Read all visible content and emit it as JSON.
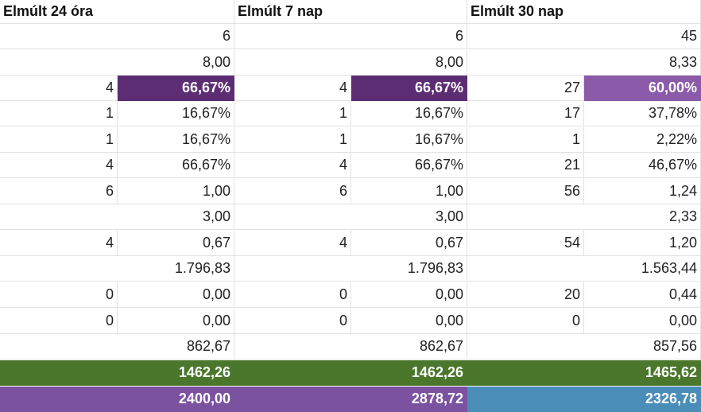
{
  "colors": {
    "dark_purple": "#5c2d73",
    "medium_purple": "#8b5aa8",
    "green": "#4a772b",
    "purple_total": "#7b52a0",
    "blue_total": "#4a8db8"
  },
  "headers": [
    "Elmúlt 24 óra",
    "Elmúlt 7 nap",
    "Elmúlt 30 nap"
  ],
  "rows": [
    {
      "type": "single",
      "values": [
        "6",
        "6",
        "45"
      ]
    },
    {
      "type": "single",
      "values": [
        "8,00",
        "8,00",
        "8,33"
      ]
    },
    {
      "type": "pair",
      "values": [
        [
          "4",
          "66,67%"
        ],
        [
          "4",
          "66,67%"
        ],
        [
          "27",
          "60,00%"
        ]
      ],
      "highlight": [
        "dark_purple",
        "dark_purple",
        "medium_purple"
      ]
    },
    {
      "type": "pair",
      "values": [
        [
          "1",
          "16,67%"
        ],
        [
          "1",
          "16,67%"
        ],
        [
          "17",
          "37,78%"
        ]
      ]
    },
    {
      "type": "pair",
      "values": [
        [
          "1",
          "16,67%"
        ],
        [
          "1",
          "16,67%"
        ],
        [
          "1",
          "2,22%"
        ]
      ]
    },
    {
      "type": "pair",
      "values": [
        [
          "4",
          "66,67%"
        ],
        [
          "4",
          "66,67%"
        ],
        [
          "21",
          "46,67%"
        ]
      ]
    },
    {
      "type": "pair",
      "values": [
        [
          "6",
          "1,00"
        ],
        [
          "6",
          "1,00"
        ],
        [
          "56",
          "1,24"
        ]
      ]
    },
    {
      "type": "single",
      "values": [
        "3,00",
        "3,00",
        "2,33"
      ]
    },
    {
      "type": "pair",
      "values": [
        [
          "4",
          "0,67"
        ],
        [
          "4",
          "0,67"
        ],
        [
          "54",
          "1,20"
        ]
      ]
    },
    {
      "type": "single",
      "values": [
        "1.796,83",
        "1.796,83",
        "1.563,44"
      ]
    },
    {
      "type": "pair",
      "values": [
        [
          "0",
          "0,00"
        ],
        [
          "0",
          "0,00"
        ],
        [
          "20",
          "0,44"
        ]
      ]
    },
    {
      "type": "pair",
      "values": [
        [
          "0",
          "0,00"
        ],
        [
          "0",
          "0,00"
        ],
        [
          "0",
          "0,00"
        ]
      ]
    },
    {
      "type": "single",
      "values": [
        "862,67",
        "862,67",
        "857,56"
      ]
    },
    {
      "type": "total",
      "values": [
        "1462,26",
        "1462,26",
        "1465,62"
      ],
      "colors": [
        "green",
        "green",
        "green"
      ]
    },
    {
      "type": "total",
      "values": [
        "2400,00",
        "2878,72",
        "2326,78"
      ],
      "colors": [
        "purple_total",
        "purple_total",
        "blue_total"
      ]
    }
  ]
}
